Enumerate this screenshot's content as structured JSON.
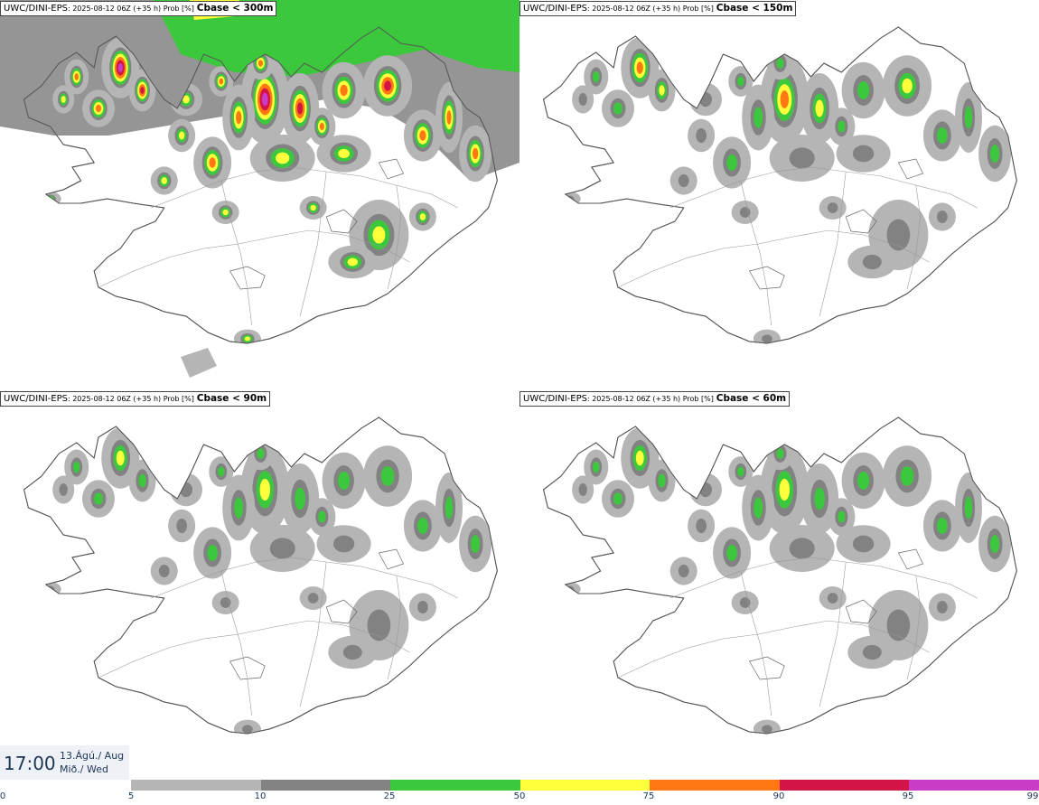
{
  "panels": [
    {
      "model": "UWC/DINI-EPS",
      "run": ": 2025-08-12 06Z (+35 h) Prob [%]",
      "field": "Cbase < 300m",
      "intensity": 1.0
    },
    {
      "model": "UWC/DINI-EPS",
      "run": ": 2025-08-12 06Z (+35 h) Prob [%]",
      "field": "Cbase < 150m",
      "intensity": 0.72
    },
    {
      "model": "UWC/DINI-EPS",
      "run": ": 2025-08-12 06Z (+35 h) Prob [%]",
      "field": "Cbase < 90m",
      "intensity": 0.6
    },
    {
      "model": "UWC/DINI-EPS",
      "run": ": 2025-08-12 06Z (+35 h) Prob [%]",
      "field": "Cbase < 60m",
      "intensity": 0.55
    }
  ],
  "time": {
    "clock": "17:00",
    "date_line1": "13.Ágú./ Aug",
    "date_line2": "Mið./ Wed"
  },
  "legend": {
    "ticks": [
      "0",
      "5",
      "10",
      "25",
      "50",
      "75",
      "90",
      "95",
      "99"
    ],
    "colors": [
      "#b5b5b5",
      "#828282",
      "#3cc83c",
      "#ffff3c",
      "#ff7814",
      "#d21446",
      "#c83cc8"
    ]
  },
  "colors": {
    "coast": "#555555",
    "land": "#ffffff"
  }
}
